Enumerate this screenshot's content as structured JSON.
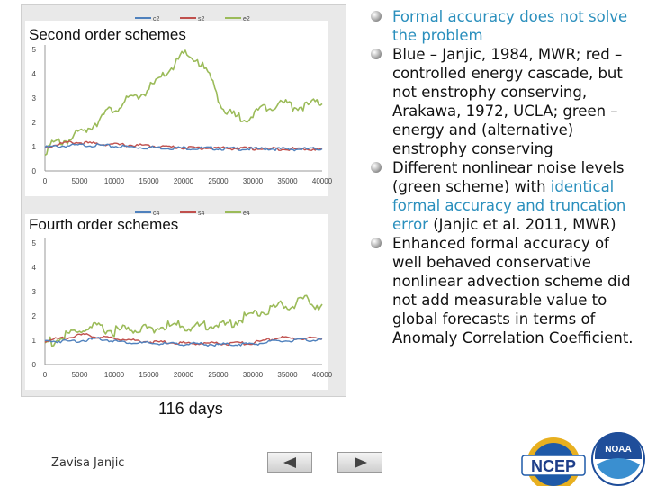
{
  "charts": {
    "panel1_title": "Second order schemes",
    "panel2_title": "Fourth order schemes",
    "caption": "116 days"
  },
  "chart_data": [
    {
      "type": "line",
      "title": "Second order schemes",
      "xlim": [
        0,
        40000
      ],
      "ylim": [
        0,
        5
      ],
      "x_ticks": [
        0,
        5000,
        10000,
        15000,
        20000,
        25000,
        30000,
        35000,
        40000
      ],
      "y_ticks": [
        0,
        1,
        2,
        3,
        4,
        5
      ],
      "x": [
        0,
        2000,
        4000,
        6000,
        8000,
        10000,
        12000,
        14000,
        16000,
        18000,
        20000,
        22000,
        24000,
        26000,
        28000,
        30000,
        32000,
        34000,
        36000,
        38000,
        40000
      ],
      "series": [
        {
          "name": "c2",
          "color": "#4f81bd",
          "values": [
            1.0,
            1.05,
            1.08,
            1.1,
            1.08,
            1.05,
            1.03,
            1.0,
            1.0,
            0.98,
            0.98,
            0.96,
            0.97,
            0.95,
            0.95,
            0.94,
            0.95,
            0.94,
            0.93,
            0.94,
            0.95
          ]
        },
        {
          "name": "s2",
          "color": "#c0504d",
          "values": [
            1.0,
            1.15,
            1.22,
            1.18,
            1.15,
            1.12,
            1.1,
            1.08,
            1.05,
            1.02,
            1.0,
            0.98,
            0.98,
            0.97,
            0.96,
            0.95,
            0.95,
            0.95,
            0.94,
            0.94,
            0.93
          ]
        },
        {
          "name": "e2",
          "color": "#9bbb59",
          "values": [
            1.0,
            1.3,
            1.5,
            1.85,
            2.3,
            2.7,
            3.0,
            3.3,
            3.7,
            4.3,
            4.9,
            4.7,
            3.9,
            2.5,
            2.3,
            2.4,
            2.8,
            2.9,
            2.8,
            2.8,
            2.95
          ]
        }
      ]
    },
    {
      "type": "line",
      "title": "Fourth order schemes",
      "xlim": [
        0,
        40000
      ],
      "ylim": [
        0,
        5
      ],
      "x_ticks": [
        0,
        5000,
        10000,
        15000,
        20000,
        25000,
        30000,
        35000,
        40000
      ],
      "y_ticks": [
        0,
        1,
        2,
        3,
        4,
        5
      ],
      "x": [
        0,
        2000,
        4000,
        6000,
        8000,
        10000,
        12000,
        14000,
        16000,
        18000,
        20000,
        22000,
        24000,
        26000,
        28000,
        30000,
        32000,
        34000,
        36000,
        38000,
        40000
      ],
      "series": [
        {
          "name": "c4",
          "color": "#4f81bd",
          "values": [
            1.0,
            1.0,
            1.0,
            1.05,
            1.1,
            1.0,
            0.95,
            0.92,
            0.9,
            0.88,
            0.88,
            0.88,
            0.86,
            0.86,
            0.88,
            0.88,
            0.95,
            1.0,
            1.02,
            1.05,
            1.05
          ]
        },
        {
          "name": "s4",
          "color": "#c0504d",
          "values": [
            1.0,
            1.1,
            1.2,
            1.25,
            1.15,
            1.12,
            1.05,
            1.0,
            0.95,
            0.95,
            0.92,
            0.9,
            0.92,
            0.9,
            0.9,
            0.92,
            1.05,
            1.15,
            1.1,
            1.12,
            1.1
          ]
        },
        {
          "name": "e4",
          "color": "#9bbb59",
          "values": [
            1.0,
            1.15,
            1.4,
            1.6,
            1.6,
            1.5,
            1.55,
            1.6,
            1.62,
            1.7,
            1.7,
            1.65,
            1.8,
            1.7,
            2.0,
            2.2,
            2.35,
            2.55,
            2.6,
            2.75,
            2.5
          ]
        }
      ]
    }
  ],
  "bullets": [
    {
      "segments": [
        {
          "text": "Formal accuracy does not solve the problem",
          "highlight": true
        }
      ]
    },
    {
      "segments": [
        {
          "text": "Blue – Janjic, 1984, MWR; red – controlled energy cascade, but not enstrophy conserving, Arakawa, 1972, UCLA; green – energy and (alternative) enstrophy conserving",
          "highlight": false
        }
      ]
    },
    {
      "segments": [
        {
          "text": "Different nonlinear noise levels (green scheme) with ",
          "highlight": false
        },
        {
          "text": "identical formal accuracy and truncation error",
          "highlight": true
        },
        {
          "text": " (Janjic et al. 2011, MWR)",
          "highlight": false
        }
      ]
    },
    {
      "segments": [
        {
          "text": "Enhanced formal accuracy of well behaved conservative nonlinear advection scheme did not add measurable value to global forecasts in terms of Anomaly Correlation Coefficient.",
          "highlight": false
        }
      ]
    }
  ],
  "footer": {
    "author": "Zavisa Janjic",
    "prev_icon": "left-triangle-icon",
    "next_icon": "right-triangle-icon"
  },
  "logos": {
    "ncep_text": "NCEP",
    "noaa_text": "NOAA"
  }
}
